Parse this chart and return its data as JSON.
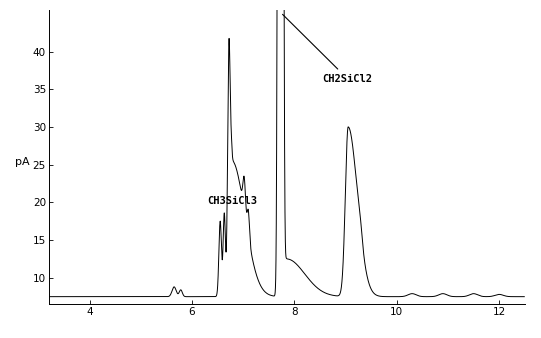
{
  "title": "",
  "xlabel": "",
  "ylabel": "pA",
  "xlim": [
    3.2,
    12.5
  ],
  "ylim": [
    6.5,
    45.5
  ],
  "xticks": [
    4,
    6,
    8,
    10,
    12
  ],
  "yticks": [
    10,
    15,
    20,
    25,
    30,
    35,
    40
  ],
  "baseline": 7.5,
  "background_color": "#ffffff",
  "line_color": "#000000",
  "line_width": 0.7,
  "label_ch2sicl2": "CH2SiCl2",
  "label_ch3sicl3": "CH3SiCl3",
  "figsize": [
    5.41,
    3.38
  ],
  "dpi": 100
}
